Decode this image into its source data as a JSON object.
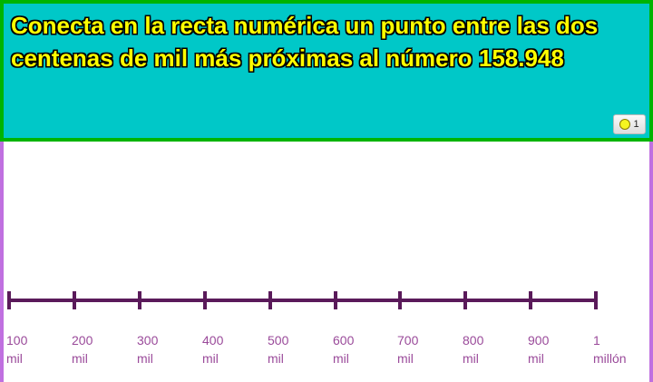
{
  "question": "Conecta en la recta numérica un punto entre las dos centenas de mil más próximas al número 158.948",
  "points_badge": {
    "icon": "coin-icon",
    "value": "1"
  },
  "colors": {
    "header_bg": "#00C8C8",
    "header_border": "#00B400",
    "question_text": "#FFFF00",
    "line": "#5A1A5A",
    "labels": "#9A4A9A",
    "side_border": "#C070E0"
  },
  "number_line": {
    "labels": [
      {
        "top": "100",
        "bottom": "mil"
      },
      {
        "top": "200",
        "bottom": "mil"
      },
      {
        "top": "300",
        "bottom": "mil"
      },
      {
        "top": "400",
        "bottom": "mil"
      },
      {
        "top": "500",
        "bottom": "mil"
      },
      {
        "top": "600",
        "bottom": "mil"
      },
      {
        "top": "700",
        "bottom": "mil"
      },
      {
        "top": "800",
        "bottom": "mil"
      },
      {
        "top": "900",
        "bottom": "mil"
      },
      {
        "top": "1",
        "bottom": "millón"
      }
    ]
  }
}
